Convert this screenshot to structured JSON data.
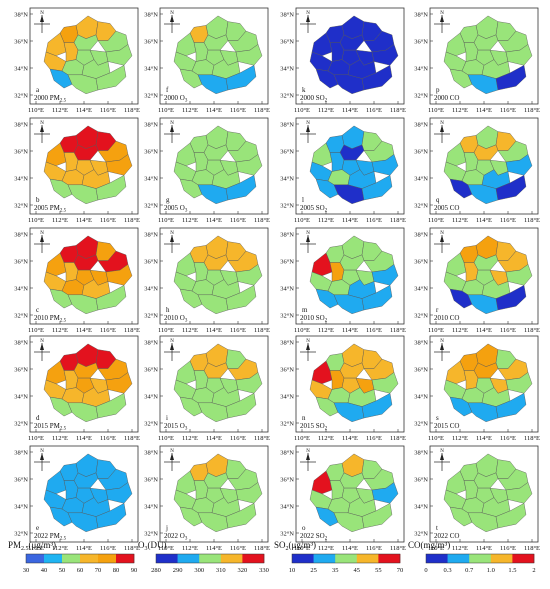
{
  "axes": {
    "x_ticks": [
      "110°E",
      "112°E",
      "114°E",
      "116°E",
      "118°E"
    ],
    "y_ticks": [
      "38°N",
      "36°N",
      "34°N",
      "32°N"
    ]
  },
  "north_label": "N",
  "panels": [
    {
      "letter": "a",
      "year": "2000",
      "pollutant": "PM",
      "sub": "2.5",
      "level": [
        3,
        4,
        3,
        2,
        2,
        3,
        3,
        2,
        2,
        2,
        3,
        2,
        2,
        1,
        2,
        2
      ]
    },
    {
      "letter": "f",
      "year": "2000",
      "pollutant": "O",
      "sub": "3",
      "level": [
        2,
        3,
        2,
        2,
        2,
        2,
        2,
        2,
        2,
        2,
        2,
        2,
        2,
        2,
        1,
        1
      ]
    },
    {
      "letter": "k",
      "year": "2000",
      "pollutant": "SO",
      "sub": "2",
      "level": [
        0,
        0,
        0,
        0,
        0,
        0,
        0,
        0,
        0,
        0,
        0,
        0,
        0,
        0,
        0,
        0
      ]
    },
    {
      "letter": "p",
      "year": "2000",
      "pollutant": "CO",
      "sub": "",
      "level": [
        2,
        2,
        2,
        2,
        2,
        2,
        2,
        2,
        2,
        2,
        2,
        2,
        2,
        2,
        1,
        0
      ]
    },
    {
      "letter": "b",
      "year": "2005",
      "pollutant": "PM",
      "sub": "2.5",
      "level": [
        5,
        5,
        5,
        5,
        4,
        4,
        3,
        3,
        3,
        4,
        3,
        3,
        3,
        2,
        2,
        2
      ]
    },
    {
      "letter": "g",
      "year": "2005",
      "pollutant": "O",
      "sub": "3",
      "level": [
        2,
        2,
        2,
        2,
        2,
        2,
        2,
        2,
        2,
        2,
        2,
        2,
        2,
        2,
        1,
        1
      ]
    },
    {
      "letter": "l",
      "year": "2005",
      "pollutant": "SO",
      "sub": "2",
      "level": [
        1,
        1,
        2,
        0,
        2,
        2,
        1,
        1,
        1,
        1,
        1,
        2,
        1,
        1,
        0,
        1
      ]
    },
    {
      "letter": "q",
      "year": "2005",
      "pollutant": "CO",
      "sub": "",
      "level": [
        2,
        3,
        3,
        3,
        2,
        2,
        2,
        2,
        2,
        1,
        2,
        2,
        1,
        0,
        1,
        0
      ]
    },
    {
      "letter": "c",
      "year": "2010",
      "pollutant": "PM",
      "sub": "2.5",
      "level": [
        5,
        5,
        4,
        5,
        5,
        4,
        3,
        4,
        4,
        4,
        3,
        4,
        3,
        2,
        2,
        2
      ]
    },
    {
      "letter": "h",
      "year": "2010",
      "pollutant": "O",
      "sub": "3",
      "level": [
        3,
        3,
        3,
        3,
        3,
        2,
        2,
        2,
        2,
        2,
        2,
        2,
        2,
        2,
        2,
        2
      ]
    },
    {
      "letter": "m",
      "year": "2010",
      "pollutant": "SO",
      "sub": "2",
      "level": [
        2,
        2,
        2,
        2,
        2,
        5,
        4,
        2,
        2,
        1,
        2,
        2,
        1,
        1,
        1,
        1
      ]
    },
    {
      "letter": "r",
      "year": "2010",
      "pollutant": "CO",
      "sub": "",
      "level": [
        4,
        4,
        3,
        2,
        3,
        2,
        3,
        2,
        3,
        2,
        2,
        2,
        2,
        0,
        1,
        0
      ]
    },
    {
      "letter": "d",
      "year": "2015",
      "pollutant": "PM",
      "sub": "2.5",
      "level": [
        5,
        5,
        5,
        4,
        4,
        4,
        3,
        4,
        3,
        4,
        3,
        3,
        3,
        2,
        2,
        2
      ]
    },
    {
      "letter": "i",
      "year": "2015",
      "pollutant": "O",
      "sub": "3",
      "level": [
        3,
        3,
        2,
        3,
        3,
        2,
        2,
        2,
        2,
        2,
        2,
        2,
        2,
        2,
        2,
        2
      ]
    },
    {
      "letter": "n",
      "year": "2015",
      "pollutant": "SO",
      "sub": "2",
      "level": [
        3,
        2,
        3,
        3,
        3,
        5,
        4,
        3,
        4,
        2,
        3,
        2,
        2,
        2,
        1,
        1
      ]
    },
    {
      "letter": "s",
      "year": "2015",
      "pollutant": "CO",
      "sub": "",
      "level": [
        4,
        4,
        2,
        4,
        3,
        3,
        3,
        2,
        3,
        2,
        2,
        2,
        2,
        1,
        1,
        1
      ]
    },
    {
      "letter": "e",
      "year": "2022",
      "pollutant": "PM",
      "sub": "2.5",
      "level": [
        1,
        1,
        1,
        1,
        1,
        1,
        1,
        1,
        1,
        1,
        1,
        1,
        1,
        1,
        1,
        1
      ]
    },
    {
      "letter": "j",
      "year": "2022",
      "pollutant": "O",
      "sub": "3",
      "level": [
        3,
        3,
        2,
        2,
        2,
        2,
        2,
        2,
        2,
        2,
        2,
        2,
        2,
        2,
        2,
        2
      ]
    },
    {
      "letter": "o",
      "year": "2022",
      "pollutant": "SO",
      "sub": "2",
      "level": [
        3,
        2,
        2,
        2,
        2,
        5,
        2,
        2,
        2,
        1,
        2,
        2,
        2,
        1,
        2,
        2
      ]
    },
    {
      "letter": "t",
      "year": "2022",
      "pollutant": "CO",
      "sub": "",
      "level": [
        2,
        2,
        2,
        2,
        2,
        2,
        2,
        2,
        2,
        2,
        2,
        2,
        2,
        2,
        2,
        2
      ]
    }
  ],
  "legends": [
    {
      "base": "PM",
      "sub": "2.5",
      "unit": "(μg/m³)",
      "ticks": [
        "30",
        "40",
        "50",
        "60",
        "70",
        "80",
        "90"
      ],
      "colors": [
        "#3b66e0",
        "#1fb4f2",
        "#99e47a",
        "#f6b62b",
        "#f5a10f",
        "#e3121e"
      ]
    },
    {
      "base": "O",
      "sub": "3",
      "unit": "(DU)",
      "ticks": [
        "280",
        "290",
        "300",
        "310",
        "320",
        "330"
      ],
      "colors": [
        "#1f2fc9",
        "#1faaf0",
        "#99e47a",
        "#f6b62b",
        "#e3121e"
      ]
    },
    {
      "base": "SO",
      "sub": "2",
      "unit": "(μg/m³)",
      "ticks": [
        "10",
        "25",
        "35",
        "45",
        "55",
        "70"
      ],
      "colors": [
        "#1f2fc9",
        "#1faaf0",
        "#99e47a",
        "#f6b62b",
        "#e3121e"
      ]
    },
    {
      "base": "CO",
      "sub": "",
      "unit": "(mg/m³)",
      "ticks": [
        "0",
        "0.3",
        "0.7",
        "1.0",
        "1.5",
        "2"
      ],
      "colors": [
        "#1f2fc9",
        "#1faaf0",
        "#99e47a",
        "#f6b62b",
        "#e3121e"
      ]
    }
  ],
  "palette": [
    "#1f2fc9",
    "#1faaf0",
    "#99e47a",
    "#f6b62b",
    "#f5a10f",
    "#e3121e"
  ]
}
